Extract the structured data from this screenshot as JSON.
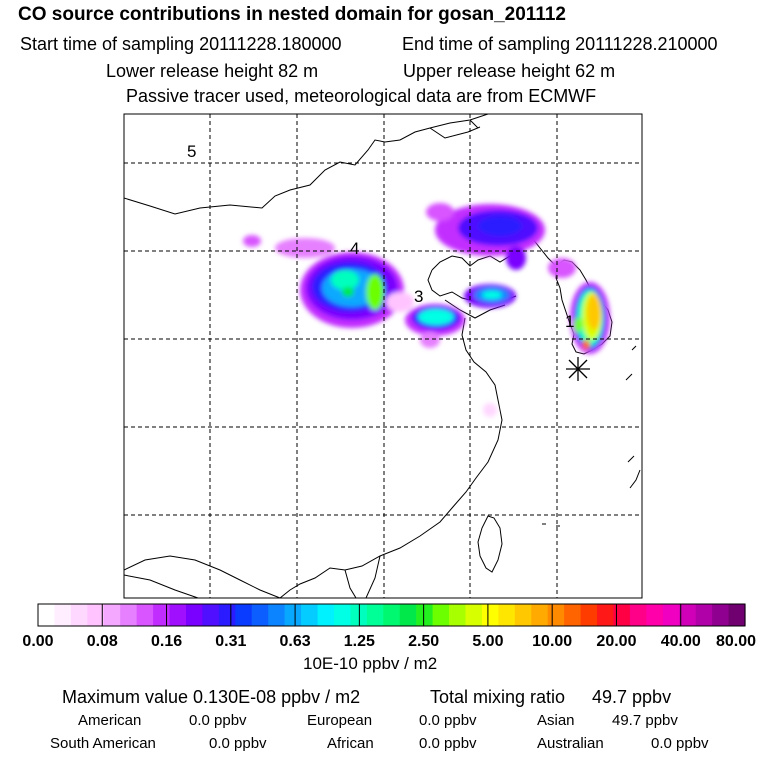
{
  "header": {
    "title": "CO  source contributions in nested domain for gosan_201112",
    "start_time": "Start time of sampling 20111228.180000",
    "end_time": "End time of sampling 20111228.210000",
    "lower_release": "Lower release height   82 m",
    "upper_release": "Upper release height   62 m",
    "tracer_note": "Passive tracer used, meteorological data are from ECMWF"
  },
  "map": {
    "region_labels": [
      "5",
      "4",
      "3",
      "1"
    ],
    "receptor_marker": "star-receptor"
  },
  "colorbar": {
    "unit": "10E-10 ppbv / m2",
    "tick_labels": [
      "0.00",
      "0.08",
      "0.16",
      "0.31",
      "0.63",
      "1.25",
      "2.50",
      "5.00",
      "10.00",
      "20.00",
      "40.00",
      "80.00"
    ],
    "colors": [
      "#ffffff",
      "#ffeeff",
      "#ffd8ff",
      "#ffc4ff",
      "#f4a8ff",
      "#e680ff",
      "#d855ff",
      "#c22dff",
      "#a010ff",
      "#7a00ff",
      "#5010ff",
      "#2a1cff",
      "#0a3cff",
      "#0c5eff",
      "#0c84ff",
      "#08a8ff",
      "#04ccff",
      "#00f2ff",
      "#00ffe4",
      "#00ffbe",
      "#00ff96",
      "#00f870",
      "#00e84a",
      "#24f020",
      "#6cff00",
      "#a8ff00",
      "#d8ff00",
      "#ffff00",
      "#ffe600",
      "#ffc800",
      "#ffaa00",
      "#ff8a00",
      "#ff6400",
      "#ff3c00",
      "#ff1818",
      "#ff0044",
      "#ff0088",
      "#ff00aa",
      "#f000c0",
      "#d000b8",
      "#b000a8",
      "#900090",
      "#700070"
    ]
  },
  "stats": {
    "max_label": "Maximum value  0.130E-08 ppbv / m2",
    "total_label": "Total mixing ratio",
    "total_value": "49.7 ppbv",
    "regions": [
      {
        "name": "American",
        "value": "0.0 ppbv"
      },
      {
        "name": "European",
        "value": "0.0 ppbv"
      },
      {
        "name": "Asian",
        "value": "49.7 ppbv"
      },
      {
        "name": "South American",
        "value": "0.0 ppbv"
      },
      {
        "name": "African",
        "value": "0.0 ppbv"
      },
      {
        "name": "Australian",
        "value": "0.0 ppbv"
      }
    ]
  }
}
